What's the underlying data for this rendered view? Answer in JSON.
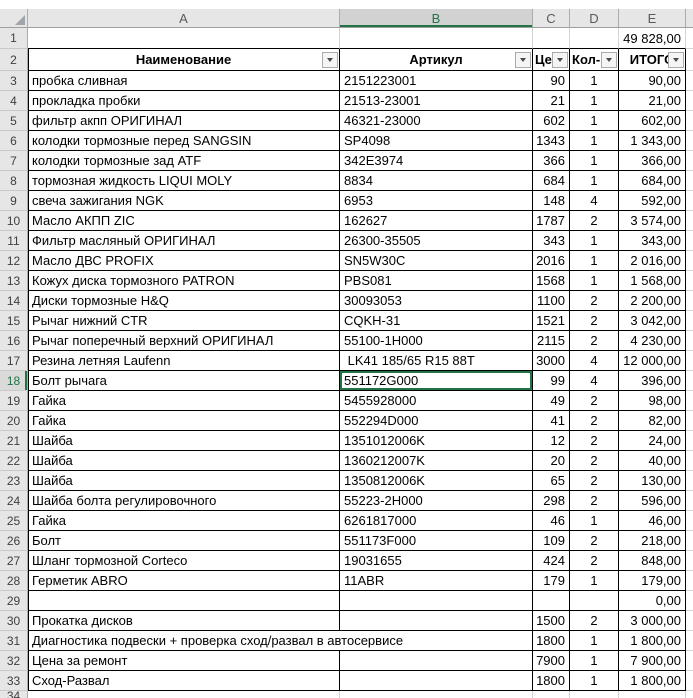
{
  "sheet": {
    "grand_total": "49 828,00",
    "column_letters": {
      "a": "A",
      "b": "B",
      "c": "C",
      "d": "D",
      "e": "E"
    },
    "selected_column_letter": "B",
    "selected_cell_row": "18",
    "row1": {
      "num": "1"
    },
    "header_row": {
      "num": "2",
      "name": "Наименование",
      "article": "Артикул",
      "price": "Цена",
      "qty": "Кол-во",
      "total": "ИТОГО"
    },
    "rows": [
      {
        "num": "3",
        "name": "пробка сливная",
        "article": "2151223001",
        "price": "90",
        "qty": "1",
        "total": "90,00"
      },
      {
        "num": "4",
        "name": "прокладка пробки",
        "article": "21513-23001",
        "price": "21",
        "qty": "1",
        "total": "21,00"
      },
      {
        "num": "5",
        "name": "фильтр акпп ОРИГИНАЛ",
        "article": "46321-23000",
        "price": "602",
        "qty": "1",
        "total": "602,00"
      },
      {
        "num": "6",
        "name": "колодки тормозные перед SANGSIN",
        "article": "SP4098",
        "price": "1343",
        "qty": "1",
        "total": "1 343,00"
      },
      {
        "num": "7",
        "name": "колодки тормозные зад ATF",
        "article": "342E3974",
        "price": "366",
        "qty": "1",
        "total": "366,00"
      },
      {
        "num": "8",
        "name": "тормозная жидкость LIQUI MOLY",
        "article": "8834",
        "price": "684",
        "qty": "1",
        "total": "684,00"
      },
      {
        "num": "9",
        "name": "свеча зажигания NGK",
        "article": "6953",
        "price": "148",
        "qty": "4",
        "total": "592,00"
      },
      {
        "num": "10",
        "name": "Масло АКПП ZIC",
        "article": "162627",
        "price": "1787",
        "qty": "2",
        "total": "3 574,00"
      },
      {
        "num": "11",
        "name": "Фильтр масляный ОРИГИНАЛ",
        "article": "26300-35505",
        "price": "343",
        "qty": "1",
        "total": "343,00"
      },
      {
        "num": "12",
        "name": "Масло ДВС PROFIX",
        "article": "SN5W30C",
        "price": "2016",
        "qty": "1",
        "total": "2 016,00"
      },
      {
        "num": "13",
        "name": "Кожух диска тормозного PATRON",
        "article": "PBS081",
        "price": "1568",
        "qty": "1",
        "total": "1 568,00"
      },
      {
        "num": "14",
        "name": "Диски тормозные H&Q",
        "article": "30093053",
        "price": "1100",
        "qty": "2",
        "total": "2 200,00"
      },
      {
        "num": "15",
        "name": "Рычаг нижний CTR",
        "article": "CQKH-31",
        "price": "1521",
        "qty": "2",
        "total": "3 042,00"
      },
      {
        "num": "16",
        "name": "Рычаг поперечный верхний ОРИГИНАЛ",
        "article": "55100-1H000",
        "price": "2115",
        "qty": "2",
        "total": "4 230,00"
      },
      {
        "num": "17",
        "name": "Резина летняя Laufenn",
        "article": " LK41 185/65 R15 88T",
        "price": "3000",
        "qty": "4",
        "total": "12 000,00"
      },
      {
        "num": "18",
        "name": "Болт рычага",
        "article": "551172G000",
        "price": "99",
        "qty": "4",
        "total": "396,00",
        "selected": true
      },
      {
        "num": "19",
        "name": "Гайка",
        "article": "5455928000",
        "price": "49",
        "qty": "2",
        "total": "98,00"
      },
      {
        "num": "20",
        "name": "Гайка",
        "article": "552294D000",
        "price": "41",
        "qty": "2",
        "total": "82,00"
      },
      {
        "num": "21",
        "name": "Шайба",
        "article": "1351012006K",
        "price": "12",
        "qty": "2",
        "total": "24,00"
      },
      {
        "num": "22",
        "name": "Шайба",
        "article": "1360212007K",
        "price": "20",
        "qty": "2",
        "total": "40,00"
      },
      {
        "num": "23",
        "name": "Шайба",
        "article": "1350812006K",
        "price": "65",
        "qty": "2",
        "total": "130,00"
      },
      {
        "num": "24",
        "name": "Шайба болта регулировочного",
        "article": "55223-2H000",
        "price": "298",
        "qty": "2",
        "total": "596,00"
      },
      {
        "num": "25",
        "name": "Гайка",
        "article": "6261817000",
        "price": "46",
        "qty": "1",
        "total": "46,00"
      },
      {
        "num": "26",
        "name": "Болт",
        "article": "551173F000",
        "price": "109",
        "qty": "2",
        "total": "218,00"
      },
      {
        "num": "27",
        "name": "Шланг тормозной Corteco",
        "article": "19031655",
        "price": "424",
        "qty": "2",
        "total": "848,00"
      },
      {
        "num": "28",
        "name": "Герметик ABRO",
        "article": "11ABR",
        "price": "179",
        "qty": "1",
        "total": "179,00"
      },
      {
        "num": "29",
        "name": "",
        "article": "",
        "price": "",
        "qty": "",
        "total": "0,00"
      },
      {
        "num": "30",
        "name": "Прокатка дисков",
        "article": "",
        "price": "1500",
        "qty": "2",
        "total": "3 000,00"
      },
      {
        "num": "31",
        "name": "Диагностика подвески + проверка сход/развал в автосервисе",
        "price": "1800",
        "qty": "1",
        "total": "1 800,00",
        "span": true
      },
      {
        "num": "32",
        "name": "Цена за ремонт",
        "article": "",
        "price": "7900",
        "qty": "1",
        "total": "7 900,00"
      },
      {
        "num": "33",
        "name": "Сход-Развал",
        "article": "",
        "price": "1800",
        "qty": "1",
        "total": "1 800,00"
      }
    ],
    "row34": {
      "num": "34"
    },
    "colors": {
      "selection_green": "#217346",
      "header_bg": "#E6E6E6",
      "table_border": "#000000",
      "gridline": "#D4D4D4"
    }
  }
}
